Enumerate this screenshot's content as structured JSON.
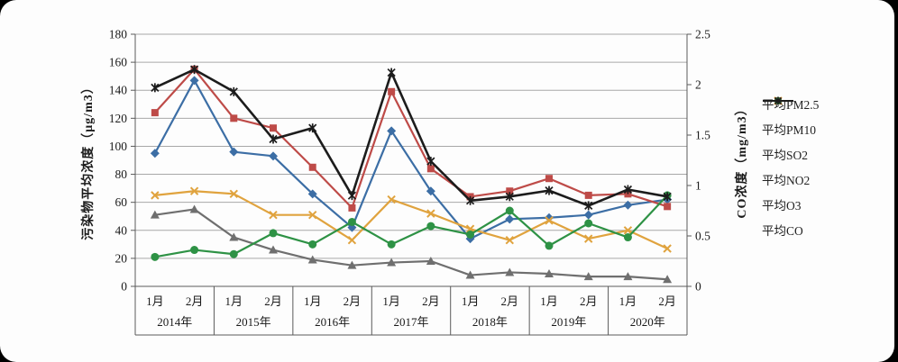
{
  "chart_data": {
    "type": "line",
    "title": "",
    "x": {
      "years": [
        "2014年",
        "2015年",
        "2016年",
        "2017年",
        "2018年",
        "2019年",
        "2020年"
      ],
      "months_per_year": [
        "1月",
        "2月"
      ]
    },
    "left_axis": {
      "label": "污染物平均浓度（μg/m3）",
      "min": 0,
      "max": 180,
      "step": 20,
      "ticks": [
        0,
        20,
        40,
        60,
        80,
        100,
        120,
        140,
        160,
        180
      ]
    },
    "right_axis": {
      "label": "CO浓度（mg/m3）",
      "min": 0,
      "max": 2.5,
      "step": 0.5,
      "ticks": [
        0,
        0.5,
        1,
        1.5,
        2,
        2.5
      ]
    },
    "grid": true,
    "legend_position": "right",
    "series": [
      {
        "name": "平均PM2.5",
        "color": "#3C6EA5",
        "marker": "diamond",
        "axis": "left",
        "values": [
          95,
          147,
          96,
          93,
          66,
          42,
          111,
          68,
          34,
          48,
          49,
          51,
          58,
          62
        ]
      },
      {
        "name": "平均PM10",
        "color": "#BE4B48",
        "marker": "square",
        "axis": "left",
        "values": [
          124,
          155,
          120,
          113,
          85,
          56,
          139,
          84,
          64,
          68,
          77,
          65,
          66,
          57
        ]
      },
      {
        "name": "平均SO2",
        "color": "#6F6F6F",
        "marker": "triangle",
        "axis": "left",
        "values": [
          51,
          55,
          35,
          26,
          19,
          15,
          17,
          18,
          8,
          10,
          9,
          7,
          7,
          5
        ]
      },
      {
        "name": "平均NO2",
        "color": "#E0A33E",
        "marker": "x",
        "axis": "left",
        "values": [
          65,
          68,
          66,
          51,
          51,
          33,
          62,
          52,
          41,
          33,
          47,
          34,
          40,
          27
        ]
      },
      {
        "name": "平均O3",
        "color": "#2E9245",
        "marker": "circle",
        "axis": "left",
        "values": [
          21,
          26,
          23,
          38,
          30,
          46,
          30,
          43,
          37,
          54,
          29,
          45,
          35,
          65
        ]
      },
      {
        "name": "平均CO",
        "color": "#1C1C1C",
        "marker": "star",
        "axis": "right",
        "values": [
          1.97,
          2.15,
          1.93,
          1.46,
          1.57,
          0.9,
          2.12,
          1.24,
          0.85,
          0.89,
          0.95,
          0.8,
          0.96,
          0.89
        ]
      }
    ]
  }
}
